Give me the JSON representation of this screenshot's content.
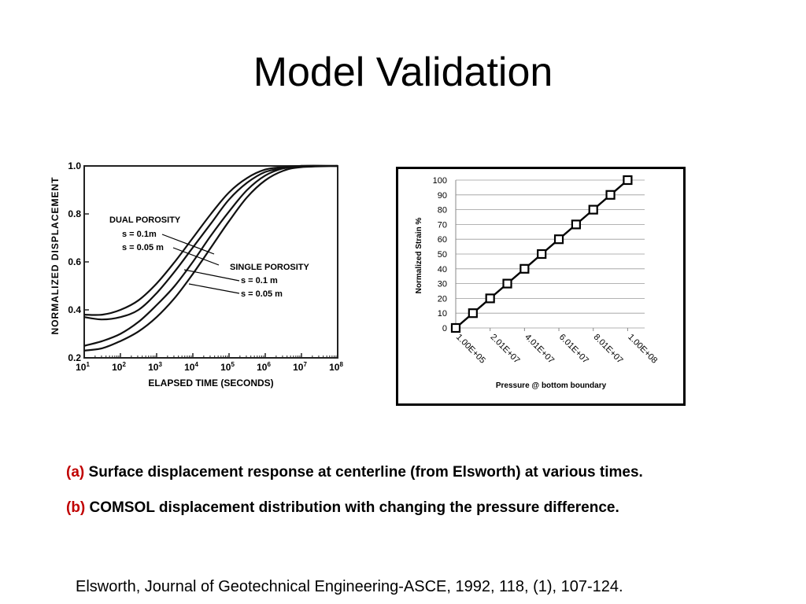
{
  "slide": {
    "title": "Model Validation",
    "caption_a_tag": "(a)",
    "caption_a_text": "Surface displacement response at centerline (from Elsworth) at various times.",
    "caption_b_tag": "(b)",
    "caption_b_text": "COMSOL displacement distribution with changing the pressure difference.",
    "reference": "Elsworth, Journal of Geotechnical Engineering-ASCE, 1992, 118, (1), 107-124.",
    "accent_color": "#c00000"
  },
  "chart_data": [
    {
      "type": "line",
      "ylabel": "NORMALIZED DISPLACEMENT",
      "xlabel": "ELAPSED TIME (SECONDS)",
      "x_scale": "log",
      "xlim": [
        10,
        100000000
      ],
      "ylim": [
        0.2,
        1.0
      ],
      "x_ticks": [
        {
          "base": "10",
          "exp": "1"
        },
        {
          "base": "10",
          "exp": "2"
        },
        {
          "base": "10",
          "exp": "3"
        },
        {
          "base": "10",
          "exp": "4"
        },
        {
          "base": "10",
          "exp": "5"
        },
        {
          "base": "10",
          "exp": "6"
        },
        {
          "base": "10",
          "exp": "7"
        },
        {
          "base": "10",
          "exp": "8"
        }
      ],
      "y_ticks": [
        "0.2",
        "0.4",
        "0.6",
        "0.8",
        "1.0"
      ],
      "annotations": [
        {
          "text": "DUAL POROSITY"
        },
        {
          "text": "s = 0.1m"
        },
        {
          "text": "s = 0.05 m"
        },
        {
          "text": "SINGLE POROSITY"
        },
        {
          "text": "s = 0.1 m"
        },
        {
          "text": "s = 0.05 m"
        }
      ],
      "series": [
        {
          "x": [
            10,
            31.6,
            100,
            316,
            1000,
            3160,
            10000,
            31600,
            100000,
            316000,
            1000000,
            3160000,
            10000000,
            100000000
          ],
          "y": [
            0.38,
            0.38,
            0.4,
            0.44,
            0.51,
            0.6,
            0.7,
            0.8,
            0.89,
            0.95,
            0.985,
            0.995,
            1.0,
            1.0
          ]
        },
        {
          "x": [
            10,
            31.6,
            100,
            316,
            1000,
            3160,
            10000,
            31600,
            100000,
            316000,
            1000000,
            3160000,
            10000000,
            100000000
          ],
          "y": [
            0.37,
            0.36,
            0.37,
            0.4,
            0.47,
            0.56,
            0.66,
            0.76,
            0.86,
            0.93,
            0.975,
            0.99,
            1.0,
            1.0
          ]
        },
        {
          "x": [
            10,
            31.6,
            100,
            316,
            1000,
            3160,
            10000,
            31600,
            100000,
            316000,
            1000000,
            3160000,
            10000000,
            100000000
          ],
          "y": [
            0.25,
            0.27,
            0.3,
            0.35,
            0.42,
            0.5,
            0.6,
            0.71,
            0.81,
            0.9,
            0.96,
            0.99,
            1.0,
            1.0
          ]
        },
        {
          "x": [
            10,
            31.6,
            100,
            316,
            1000,
            3160,
            10000,
            31600,
            100000,
            316000,
            1000000,
            3160000,
            10000000,
            100000000
          ],
          "y": [
            0.23,
            0.24,
            0.27,
            0.31,
            0.37,
            0.45,
            0.55,
            0.66,
            0.77,
            0.87,
            0.94,
            0.98,
            0.995,
            1.0
          ]
        }
      ]
    },
    {
      "type": "line",
      "xlabel": "Pressure @ bottom boundary",
      "ylabel": "Normalized Strain %",
      "ylim": [
        0,
        100
      ],
      "y_ticks": [
        "0",
        "10",
        "20",
        "30",
        "40",
        "50",
        "60",
        "70",
        "80",
        "90",
        "100"
      ],
      "x_tick_labels": [
        "1.00E+05",
        "2.01E+07",
        "4.01E+07",
        "6.01E+07",
        "8.01E+07",
        "1.00E+08"
      ],
      "grid": true,
      "marker": "square",
      "x": [
        "1.00E+05",
        "1.01E+07",
        "2.01E+07",
        "3.01E+07",
        "4.01E+07",
        "5.01E+07",
        "6.01E+07",
        "7.01E+07",
        "8.01E+07",
        "9.01E+07",
        "1.00E+08"
      ],
      "values": [
        0,
        10,
        20,
        30,
        40,
        50,
        60,
        70,
        80,
        90,
        100
      ]
    }
  ]
}
